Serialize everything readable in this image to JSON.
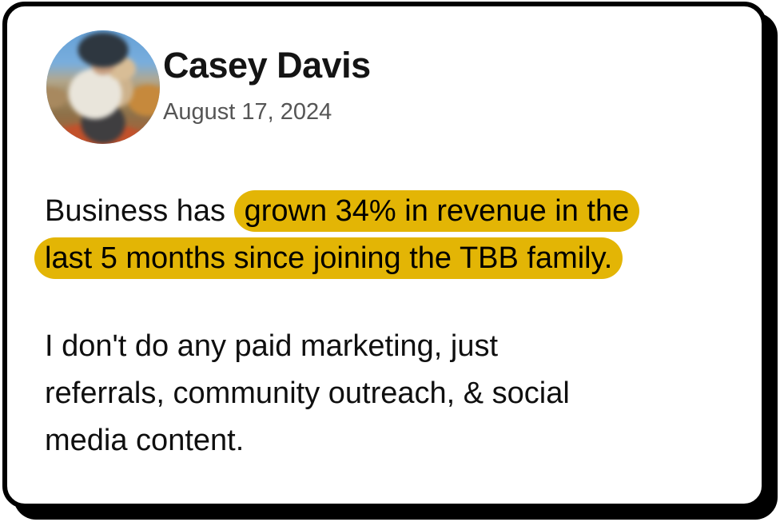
{
  "card": {
    "author": {
      "name": "Casey Davis",
      "date": "August 17, 2024"
    },
    "avatar": {
      "description": "outdoor photo of person in dark cap and light shirt holding a tan dog, red dirt landscape"
    },
    "paragraph1": {
      "prefix": "Business has ",
      "highlight_line1": "grown 34% in revenue in the",
      "highlight_line2": "last 5 months since joining the TBB family."
    },
    "paragraph2": {
      "line1": "I don't do any paid marketing, just",
      "line2": "referrals, community outreach, & social",
      "line3": "media content."
    },
    "colors": {
      "highlight": "#E3B505",
      "date_text": "#555555",
      "body_text": "#0f0f0f",
      "border_and_shadow": "#000000",
      "card_background": "#ffffff"
    }
  }
}
